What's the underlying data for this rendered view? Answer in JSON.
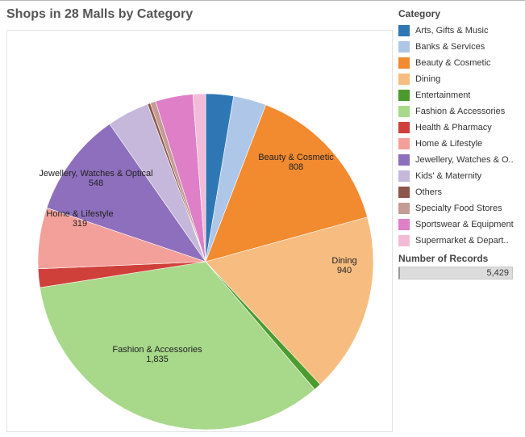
{
  "title": "Shops in 28 Malls by Category",
  "legend": {
    "title": "Category",
    "items": [
      {
        "label": "Arts, Gifts & Music",
        "color": "#2f77b4"
      },
      {
        "label": "Banks & Services",
        "color": "#aec7e8"
      },
      {
        "label": "Beauty & Cosmetic",
        "color": "#f28a30"
      },
      {
        "label": "Dining",
        "color": "#f7bd80"
      },
      {
        "label": "Entertainment",
        "color": "#4c9b2e"
      },
      {
        "label": "Fashion & Accessories",
        "color": "#a8d88a"
      },
      {
        "label": "Health & Pharmacy",
        "color": "#d0403a"
      },
      {
        "label": "Home & Lifestyle",
        "color": "#f4a09a"
      },
      {
        "label": "Jewellery, Watches & O..",
        "color": "#8e6fbd"
      },
      {
        "label": "Kids' & Maternity",
        "color": "#c5b8da"
      },
      {
        "label": "Others",
        "color": "#8c564b"
      },
      {
        "label": "Specialty Food Stores",
        "color": "#c49c94"
      },
      {
        "label": "Sportswear & Equipment",
        "color": "#de7fc8"
      },
      {
        "label": "Supermarket & Depart..",
        "color": "#f2bcd8"
      }
    ]
  },
  "records": {
    "title": "Number of Records",
    "value": "5,429"
  },
  "chart_data": {
    "type": "pie",
    "title": "Shops in 28 Malls by Category",
    "total": 5429,
    "slices": [
      {
        "name": "Arts, Gifts & Music",
        "value": 145,
        "color": "#2f77b4",
        "label": ""
      },
      {
        "name": "Banks & Services",
        "value": 172,
        "color": "#aec7e8",
        "label": ""
      },
      {
        "name": "Beauty & Cosmetic",
        "value": 808,
        "color": "#f28a30",
        "label": "Beauty & Cosmetic",
        "value_label": "808"
      },
      {
        "name": "Dining",
        "value": 940,
        "color": "#f7bd80",
        "label": "Dining",
        "value_label": "940"
      },
      {
        "name": "Entertainment",
        "value": 38,
        "color": "#4c9b2e",
        "label": ""
      },
      {
        "name": "Fashion & Accessories",
        "value": 1835,
        "color": "#a8d88a",
        "label": "Fashion & Accessories",
        "value_label": "1,835"
      },
      {
        "name": "Health & Pharmacy",
        "value": 97,
        "color": "#d0403a",
        "label": ""
      },
      {
        "name": "Home & Lifestyle",
        "value": 319,
        "color": "#f4a09a",
        "label": "Home & Lifestyle",
        "value_label": "319"
      },
      {
        "name": "Jewellery, Watches & Optical",
        "value": 548,
        "color": "#8e6fbd",
        "label": "Jewellery, Watches & Optical",
        "value_label": "548"
      },
      {
        "name": "Kids' & Maternity",
        "value": 221,
        "color": "#c5b8da",
        "label": ""
      },
      {
        "name": "Others",
        "value": 15,
        "color": "#8c564b",
        "label": ""
      },
      {
        "name": "Specialty Food Stores",
        "value": 29,
        "color": "#c49c94",
        "label": ""
      },
      {
        "name": "Sportswear & Equipment",
        "value": 196,
        "color": "#de7fc8",
        "label": ""
      },
      {
        "name": "Supermarket & Department",
        "value": 66,
        "color": "#f2bcd8",
        "label": ""
      }
    ]
  }
}
